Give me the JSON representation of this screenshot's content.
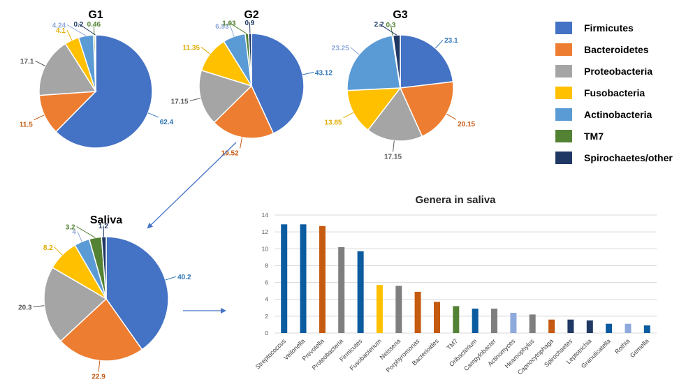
{
  "colors": {
    "phylum": [
      "#4472C4",
      "#ED7D31",
      "#A5A5A5",
      "#FFC000",
      "#5B9BD5",
      "#548235",
      "#203864"
    ],
    "label": [
      "#2E75B6",
      "#C55A11",
      "#595959",
      "#E0AC00",
      "#8EA9DB",
      "#548235",
      "#1F3864"
    ]
  },
  "legend": {
    "items": [
      {
        "label": "Firmicutes",
        "color": "#4472C4"
      },
      {
        "label": "Bacteroidetes",
        "color": "#ED7D31"
      },
      {
        "label": "Proteobacteria",
        "color": "#A5A5A5"
      },
      {
        "label": "Fusobacteria",
        "color": "#FFC000"
      },
      {
        "label": "Actinobacteria",
        "color": "#5B9BD5"
      },
      {
        "label": "TM7",
        "color": "#548235"
      },
      {
        "label": "Spirochaetes/other",
        "color": "#203864"
      }
    ]
  },
  "chart_data": [
    {
      "type": "pie",
      "title": "G1",
      "categories": [
        "Firmicutes",
        "Bacteroidetes",
        "Proteobacteria",
        "Fusobacteria",
        "Actinobacteria",
        "TM7",
        "Spirochaetes/other"
      ],
      "values": [
        62.4,
        11.5,
        17.1,
        4.1,
        4.24,
        0.46,
        0.2
      ],
      "value_labels": [
        "62.4",
        "11.5",
        "17.1",
        "4.1",
        "4.24",
        "0.46",
        "0.2"
      ]
    },
    {
      "type": "pie",
      "title": "G2",
      "categories": [
        "Firmicutes",
        "Bacteroidetes",
        "Proteobacteria",
        "Fusobacteria",
        "Actinobacteria",
        "TM7",
        "Spirochaetes/other"
      ],
      "values": [
        43.12,
        19.52,
        17.15,
        11.35,
        6.93,
        1.03,
        0.9
      ],
      "value_labels": [
        "43.12",
        "19.52",
        "17.15",
        "11.35",
        "6.93",
        "1.03",
        "0.9"
      ]
    },
    {
      "type": "pie",
      "title": "G3",
      "categories": [
        "Firmicutes",
        "Bacteroidetes",
        "Proteobacteria",
        "Fusobacteria",
        "Actinobacteria",
        "TM7",
        "Spirochaetes/other"
      ],
      "values": [
        23.1,
        20.15,
        17.15,
        13.85,
        23.25,
        0.3,
        2.2
      ],
      "value_labels": [
        "23.1",
        "20.15",
        "17.15",
        "13.85",
        "23.25",
        "0.3",
        "2.2"
      ]
    },
    {
      "type": "pie",
      "title": "Saliva",
      "categories": [
        "Firmicutes",
        "Bacteroidetes",
        "Proteobacteria",
        "Fusobacteria",
        "Actinobacteria",
        "TM7",
        "Spirochaetes/other"
      ],
      "values": [
        40.2,
        22.9,
        20.3,
        8.2,
        4,
        3.2,
        1.2
      ],
      "value_labels": [
        "40.2",
        "22.9",
        "20.3",
        "8.2",
        "4",
        "3.2",
        "1.2"
      ]
    },
    {
      "type": "bar",
      "title": "Genera in saliva",
      "categories": [
        "Streptococcus",
        "Veilonella",
        "Prevotella",
        "Proteobacteria",
        "Firmicutes",
        "Fusobacterium",
        "Neisseria",
        "Porphyromonas",
        "Bacterioides",
        "TM7",
        "Oribacterium",
        "Campylobacter",
        "Actinomyces",
        "Heamophylus",
        "Capnocytophaga",
        "Spirochaetes",
        "Leptotrichia",
        "Granulicatella",
        "Rothia",
        "Gemella"
      ],
      "values": [
        12.9,
        12.9,
        12.7,
        10.2,
        9.7,
        5.7,
        5.6,
        4.9,
        3.7,
        3.2,
        2.9,
        2.9,
        2.4,
        2.2,
        1.6,
        1.6,
        1.5,
        1.1,
        1.1,
        0.9
      ],
      "bar_colors": [
        "#0B5BA0",
        "#0B5BA0",
        "#C55A11",
        "#7F7F7F",
        "#0B5BA0",
        "#FFC000",
        "#7F7F7F",
        "#C55A11",
        "#C55A11",
        "#548235",
        "#0B5BA0",
        "#7F7F7F",
        "#8EA9DB",
        "#7F7F7F",
        "#C55A11",
        "#203864",
        "#203864",
        "#0B5BA0",
        "#8EA9DB",
        "#0B5BA0"
      ],
      "ylim": [
        0,
        14
      ],
      "yticks": [
        "0",
        "2",
        "4",
        "6",
        "8",
        "10",
        "12",
        "14"
      ],
      "grid": true
    }
  ]
}
